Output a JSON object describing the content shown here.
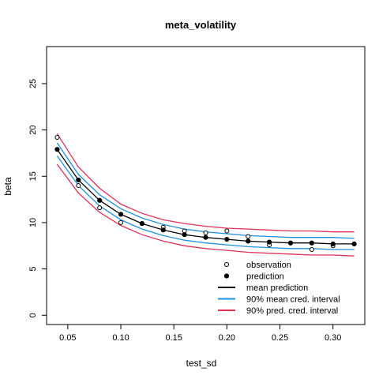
{
  "chart_data": {
    "type": "scatter",
    "title": "meta_volatility",
    "xlabel": "test_sd",
    "ylabel": "beta",
    "xlim": [
      0.03,
      0.33
    ],
    "ylim": [
      -1,
      29
    ],
    "x_ticks": [
      0.05,
      0.1,
      0.15,
      0.2,
      0.25,
      0.3
    ],
    "x_tick_labels": [
      "0.05",
      "0.10",
      "0.15",
      "0.20",
      "0.25",
      "0.30"
    ],
    "y_ticks": [
      0,
      5,
      10,
      15,
      20,
      25
    ],
    "y_tick_labels": [
      "0",
      "5",
      "10",
      "15",
      "20",
      "25"
    ],
    "grid": false,
    "legend_position": "bottom-right",
    "series": [
      {
        "name": "observation",
        "kind": "points",
        "marker": "open-circle",
        "color": "#000000",
        "x": [
          0.04,
          0.06,
          0.08,
          0.1,
          0.12,
          0.14,
          0.16,
          0.18,
          0.2,
          0.22,
          0.24,
          0.26,
          0.28,
          0.3,
          0.32
        ],
        "y": [
          19.2,
          14.0,
          11.6,
          10.0,
          9.9,
          9.5,
          9.1,
          8.9,
          9.1,
          8.5,
          7.6,
          7.8,
          7.1,
          7.5,
          7.7
        ]
      },
      {
        "name": "prediction",
        "kind": "points",
        "marker": "filled-circle",
        "color": "#000000",
        "x": [
          0.04,
          0.06,
          0.08,
          0.1,
          0.12,
          0.14,
          0.16,
          0.18,
          0.2,
          0.22,
          0.24,
          0.26,
          0.28,
          0.3,
          0.32
        ],
        "y": [
          17.9,
          14.6,
          12.4,
          10.9,
          9.9,
          9.2,
          8.7,
          8.4,
          8.2,
          8.0,
          7.9,
          7.8,
          7.8,
          7.7,
          7.7
        ]
      },
      {
        "name": "mean prediction",
        "kind": "line",
        "color": "#000000",
        "x": [
          0.04,
          0.06,
          0.08,
          0.1,
          0.12,
          0.14,
          0.16,
          0.18,
          0.2,
          0.22,
          0.24,
          0.26,
          0.28,
          0.3,
          0.32
        ],
        "y": [
          17.9,
          14.6,
          12.4,
          10.9,
          9.9,
          9.2,
          8.7,
          8.4,
          8.2,
          8.0,
          7.9,
          7.8,
          7.8,
          7.7,
          7.7
        ]
      },
      {
        "name": "90% mean cred. interval",
        "kind": "line-pair",
        "color": "#1E90E0",
        "x": [
          0.04,
          0.06,
          0.08,
          0.1,
          0.12,
          0.14,
          0.16,
          0.18,
          0.2,
          0.22,
          0.24,
          0.26,
          0.28,
          0.3,
          0.32
        ],
        "upper": [
          18.6,
          15.2,
          13.0,
          11.5,
          10.5,
          9.8,
          9.3,
          9.0,
          8.8,
          8.6,
          8.5,
          8.4,
          8.4,
          8.4,
          8.3
        ],
        "lower": [
          17.2,
          14.0,
          11.8,
          10.3,
          9.3,
          8.6,
          8.1,
          7.8,
          7.6,
          7.4,
          7.3,
          7.2,
          7.2,
          7.1,
          7.1
        ]
      },
      {
        "name": "90% pred. cred. interval",
        "kind": "line-pair",
        "color": "#DF3057",
        "x": [
          0.04,
          0.06,
          0.08,
          0.1,
          0.12,
          0.14,
          0.16,
          0.18,
          0.2,
          0.22,
          0.24,
          0.26,
          0.28,
          0.3,
          0.32
        ],
        "upper": [
          19.6,
          16.0,
          13.7,
          12.0,
          11.0,
          10.3,
          9.9,
          9.6,
          9.4,
          9.3,
          9.2,
          9.1,
          9.1,
          9.0,
          9.0
        ],
        "lower": [
          16.3,
          13.2,
          11.1,
          9.7,
          8.7,
          8.0,
          7.5,
          7.2,
          7.0,
          6.8,
          6.7,
          6.6,
          6.5,
          6.5,
          6.4
        ]
      }
    ],
    "legend": [
      {
        "label": "observation",
        "marker": "open-circle",
        "color": "#000000"
      },
      {
        "label": "prediction",
        "marker": "filled-circle",
        "color": "#000000"
      },
      {
        "label": "mean prediction",
        "marker": "line",
        "color": "#000000"
      },
      {
        "label": "90% mean cred. interval",
        "marker": "line",
        "color": "#1E90E0"
      },
      {
        "label": "90% pred. cred. interval",
        "marker": "line",
        "color": "#DF3057"
      }
    ]
  }
}
